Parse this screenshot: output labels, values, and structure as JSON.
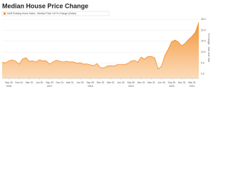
{
  "chart_data": {
    "type": "area",
    "title": "Median House Price Change",
    "series": [
      {
        "name": "NAR Existing Home Sales - Median Price YoY% Change (Dollar)",
        "color": "#f28c28",
        "values": [
          5.3,
          5.1,
          6.0,
          6.5,
          5.8,
          4.5,
          6.8,
          7.5,
          5.8,
          6.0,
          5.5,
          6.5,
          6.0,
          6.0,
          4.5,
          5.5,
          6.3,
          5.8,
          5.5,
          5.8,
          5.5,
          5.5,
          4.9,
          5.2,
          4.5,
          4.6,
          4.2,
          3.8,
          4.7,
          2.9,
          2.8,
          3.6,
          3.8,
          3.6,
          4.3,
          4.3,
          4.3,
          4.7,
          5.9,
          6.2,
          5.4,
          7.7,
          6.8,
          8.0,
          8.0,
          7.4,
          2.3,
          3.5,
          8.5,
          11.4,
          14.8,
          15.5,
          14.6,
          12.9,
          14.1,
          15.8,
          17.2,
          19.1,
          23.6
        ]
      }
    ],
    "xticks": [
      "Sep 30",
      "Dec 31",
      "Mar 31",
      "Jun 30",
      "Sep 30",
      "Dec 31",
      "Mar 31",
      "Jun 30",
      "Sep 30",
      "Dec 31",
      "Mar 31",
      "Jun 30",
      "Sep 30",
      "Dec 31",
      "Mar 31",
      "Jun 30",
      "Sep 30",
      "Dec 31",
      "Mar 31"
    ],
    "year_labels": [
      "2016",
      "2017",
      "2018",
      "2019",
      "2020",
      "2021"
    ],
    "ylabel": "% Change - Year over Year",
    "ylim": [
      -2,
      26
    ],
    "yticks": [
      {
        "value": 0,
        "label": "0.0"
      },
      {
        "value": 5,
        "label": "5.0"
      },
      {
        "value": 10,
        "label": "10.0"
      },
      {
        "value": 15,
        "label": "15.0"
      },
      {
        "value": 20,
        "label": "20.0"
      },
      {
        "value": 25,
        "label": "25.0"
      }
    ],
    "grid": true
  }
}
